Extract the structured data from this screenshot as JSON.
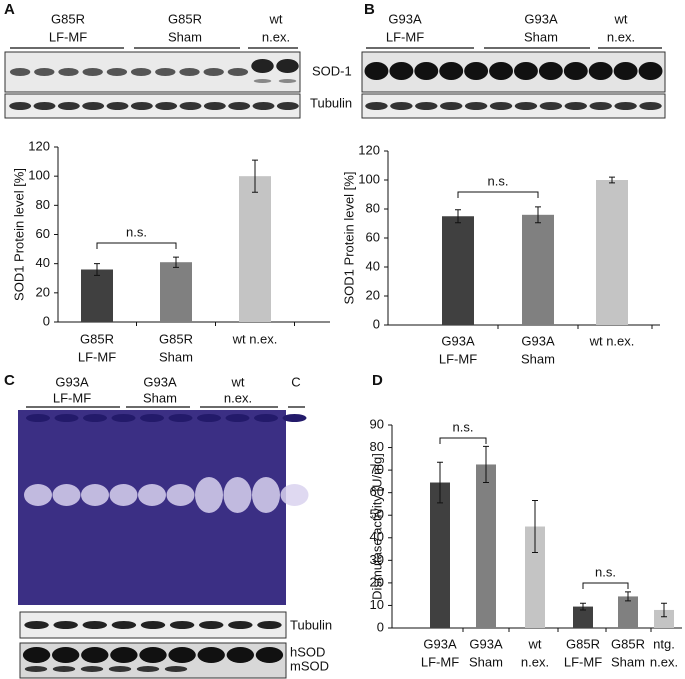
{
  "panels": [
    "A",
    "B",
    "C",
    "D"
  ],
  "blots": {
    "A": {
      "groups": [
        [
          "G85R",
          "LF-MF"
        ],
        [
          "G85R",
          "Sham"
        ],
        [
          "wt",
          "n.ex."
        ]
      ],
      "rows": [
        "SOD-1",
        "Tubulin"
      ]
    },
    "B": {
      "groups": [
        [
          "G93A",
          "LF-MF"
        ],
        [
          "G93A",
          "Sham"
        ],
        [
          "wt",
          "n.ex."
        ]
      ]
    },
    "C": {
      "groups": [
        [
          "G93A",
          "LF-MF"
        ],
        [
          "G93A",
          "Sham"
        ],
        [
          "wt",
          "n.ex."
        ],
        [
          "C"
        ]
      ],
      "rows": [
        "Tubulin",
        "hSOD",
        "mSOD"
      ]
    }
  },
  "chart_data": [
    {
      "type": "bar",
      "ylabel": "SOD1 Protein level [%]",
      "categories": [
        [
          "G85R",
          "LF-MF"
        ],
        [
          "G85R",
          "Sham"
        ],
        [
          "wt n.ex."
        ]
      ],
      "values": [
        36,
        41,
        100
      ],
      "errors": [
        4,
        3.5,
        11
      ],
      "colors": [
        "#404040",
        "#808080",
        "#c4c4c4"
      ],
      "ylim": [
        0,
        120
      ],
      "yticks": [
        0,
        20,
        40,
        60,
        80,
        100,
        120
      ],
      "annotations": [
        "n.s."
      ]
    },
    {
      "type": "bar",
      "ylabel": "SOD1 Protein level [%]",
      "categories": [
        [
          "G93A",
          "LF-MF"
        ],
        [
          "G93A",
          "Sham"
        ],
        [
          "wt n.ex."
        ]
      ],
      "values": [
        75,
        76,
        100
      ],
      "errors": [
        4.5,
        5.5,
        2
      ],
      "colors": [
        "#404040",
        "#808080",
        "#c4c4c4"
      ],
      "ylim": [
        0,
        120
      ],
      "yticks": [
        0,
        20,
        40,
        60,
        80,
        100,
        120
      ],
      "annotations": [
        "n.s."
      ]
    },
    {
      "type": "bar",
      "ylabel": "Dismutase activity [U/mg]",
      "categories": [
        [
          "G93A",
          "LF-MF"
        ],
        [
          "G93A",
          "Sham"
        ],
        [
          "wt",
          "n.ex."
        ],
        [
          "G85R",
          "LF-MF"
        ],
        [
          "G85R",
          "Sham"
        ],
        [
          "ntg.",
          "n.ex."
        ]
      ],
      "values": [
        64.5,
        72.5,
        45,
        9.5,
        14,
        8
      ],
      "errors": [
        9,
        8,
        11.5,
        1.5,
        2,
        3
      ],
      "colors": [
        "#404040",
        "#808080",
        "#c4c4c4",
        "#404040",
        "#808080",
        "#c4c4c4"
      ],
      "ylim": [
        0,
        90
      ],
      "yticks": [
        0,
        10,
        20,
        30,
        40,
        50,
        60,
        70,
        80,
        90
      ],
      "annotations": [
        "n.s.",
        "n.s."
      ]
    }
  ]
}
